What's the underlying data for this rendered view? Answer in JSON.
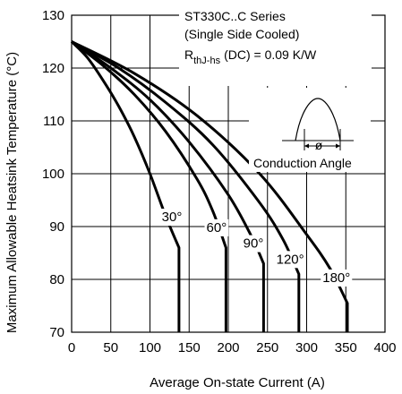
{
  "chart_data": {
    "type": "line",
    "xlabel": "Average On-state Current (A)",
    "ylabel": "Maximum Allowable Heatsink Temperature (°C)",
    "xlim": [
      0,
      400
    ],
    "ylim": [
      70,
      130
    ],
    "x_ticks": [
      "0",
      "50",
      "100",
      "150",
      "200",
      "250",
      "300",
      "350",
      "400"
    ],
    "y_ticks": [
      "70",
      "80",
      "90",
      "100",
      "110",
      "120",
      "130"
    ],
    "grid": true,
    "annotation_lines": [
      "ST330C..C Series",
      "(Single Side Cooled)",
      "RthJ-hs (DC) = 0.09 K/W"
    ],
    "rth_main": "R",
    "rth_sub": "thJ-hs",
    "rth_rest": "(DC) = 0.09 K/W",
    "inset_label": "Conduction Angle",
    "inset_symbol": "ø",
    "series": [
      {
        "name": "30°",
        "x": [
          0,
          20,
          40,
          60,
          80,
          100,
          120,
          137,
          137
        ],
        "y": [
          125,
          122,
          117.7,
          112.8,
          107,
          100,
          92,
          86,
          70
        ],
        "label_at": [
          128,
          91
        ]
      },
      {
        "name": "60°",
        "x": [
          0,
          40,
          80,
          120,
          160,
          180,
          197,
          197
        ],
        "y": [
          125,
          120.5,
          115,
          108,
          99,
          93,
          86,
          70
        ],
        "label_at": [
          185,
          89
        ]
      },
      {
        "name": "90°",
        "x": [
          0,
          50,
          100,
          150,
          200,
          230,
          245,
          245
        ],
        "y": [
          125,
          120,
          114,
          106,
          96,
          88,
          83,
          70
        ],
        "label_at": [
          232,
          86
        ]
      },
      {
        "name": "120°",
        "x": [
          0,
          60,
          120,
          180,
          240,
          270,
          290,
          290
        ],
        "y": [
          125,
          120,
          113.5,
          105.5,
          94.5,
          87.5,
          81,
          70
        ],
        "label_at": [
          279,
          83
        ]
      },
      {
        "name": "180°",
        "x": [
          0,
          80,
          160,
          240,
          300,
          330,
          352,
          352
        ],
        "y": [
          125,
          119,
          111,
          100,
          88.5,
          82,
          75.5,
          70
        ],
        "label_at": [
          338,
          79.5
        ]
      }
    ]
  }
}
